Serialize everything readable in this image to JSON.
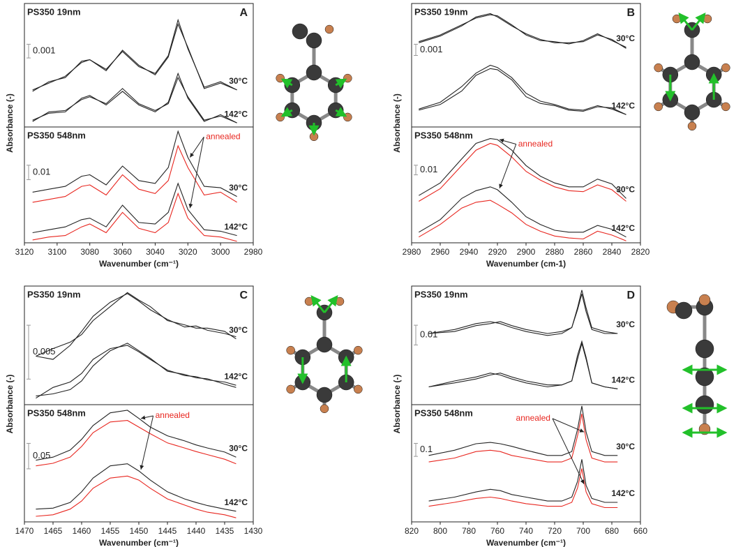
{
  "chart_data": [
    {
      "type": "line",
      "panel": "A",
      "xlabel": "Wavenumber (cm⁻¹)",
      "ylabel": "Absorbance (-)",
      "xlim": [
        3120,
        2980
      ],
      "xticks": [
        3120,
        3100,
        3080,
        3060,
        3040,
        3020,
        3000,
        2980
      ],
      "x": [
        3115,
        3105,
        3095,
        3085,
        3080,
        3070,
        3060,
        3050,
        3040,
        3032,
        3026,
        3020,
        3010,
        3000,
        2990
      ],
      "subplots": [
        {
          "title": "PS350 19nm",
          "scale_bar": 0.001,
          "ylim": [
            0,
            0.009
          ],
          "labels": [
            "30°C",
            "142°C"
          ],
          "series": [
            {
              "color": "#222222",
              "values": [
                0.0026,
                0.0033,
                0.0036,
                0.0048,
                0.0049,
                0.0042,
                0.0055,
                0.0044,
                0.0039,
                0.0052,
                0.0078,
                0.0057,
                0.0029,
                0.0033,
                0.0027
              ]
            },
            {
              "color": "#222222",
              "values": [
                0.0027,
                0.0032,
                0.0037,
                0.0047,
                0.0049,
                0.0041,
                0.0056,
                0.0045,
                0.0038,
                0.0051,
                0.0075,
                0.0058,
                0.0028,
                0.0032,
                0.0027
              ]
            },
            {
              "color": "#222222",
              "values": [
                0.0005,
                0.001,
                0.0011,
                0.0021,
                0.0023,
                0.0016,
                0.0026,
                0.0016,
                0.0011,
                0.0018,
                0.0039,
                0.0021,
                0.0004,
                0.0009,
                0.0003
              ]
            },
            {
              "color": "#222222",
              "values": [
                0.0004,
                0.0011,
                0.0012,
                0.002,
                0.0022,
                0.0017,
                0.0028,
                0.0017,
                0.0012,
                0.0017,
                0.0036,
                0.0022,
                0.0005,
                0.0008,
                0.0003
              ]
            }
          ]
        },
        {
          "title": "PS350 548nm",
          "scale_bar": 0.01,
          "ylim": [
            0,
            0.08
          ],
          "labels": [
            "30°C",
            "142°C"
          ],
          "annotation": "annealed",
          "series": [
            {
              "color": "#222222",
              "values": [
                0.035,
                0.037,
                0.039,
                0.046,
                0.047,
                0.04,
                0.053,
                0.043,
                0.041,
                0.052,
                0.077,
                0.059,
                0.039,
                0.038,
                0.032
              ]
            },
            {
              "color": "#e8261f",
              "values": [
                0.028,
                0.03,
                0.032,
                0.039,
                0.04,
                0.033,
                0.047,
                0.037,
                0.034,
                0.043,
                0.067,
                0.052,
                0.033,
                0.035,
                0.028
              ]
            },
            {
              "color": "#222222",
              "values": [
                0.007,
                0.009,
                0.011,
                0.016,
                0.017,
                0.011,
                0.026,
                0.014,
                0.013,
                0.021,
                0.041,
                0.023,
                0.009,
                0.008,
                0.005
              ]
            },
            {
              "color": "#e8261f",
              "values": [
                0.002,
                0.004,
                0.005,
                0.011,
                0.013,
                0.007,
                0.021,
                0.01,
                0.007,
                0.014,
                0.034,
                0.017,
                0.005,
                0.004,
                0.001
              ]
            }
          ]
        }
      ]
    },
    {
      "type": "line",
      "panel": "B",
      "xlabel": "Wavenumber (cm-1)",
      "ylabel": "Absorbance (-)",
      "xlim": [
        2980,
        2820
      ],
      "xticks": [
        2980,
        2960,
        2940,
        2920,
        2900,
        2880,
        2860,
        2840,
        2820
      ],
      "x": [
        2975,
        2960,
        2945,
        2935,
        2925,
        2920,
        2910,
        2900,
        2890,
        2880,
        2870,
        2860,
        2850,
        2840,
        2830
      ],
      "subplots": [
        {
          "title": "PS350 19nm",
          "scale_bar": 0.001,
          "ylim": [
            0,
            0.011
          ],
          "labels": [
            "30°C",
            "142°C"
          ],
          "series": [
            {
              "color": "#222222",
              "values": [
                0.0076,
                0.0082,
                0.0091,
                0.0097,
                0.01,
                0.0099,
                0.0091,
                0.0082,
                0.0077,
                0.0076,
                0.0074,
                0.0077,
                0.0083,
                0.0077,
                0.0071
              ]
            },
            {
              "color": "#222222",
              "values": [
                0.0075,
                0.0081,
                0.009,
                0.0098,
                0.0101,
                0.0098,
                0.009,
                0.0083,
                0.0078,
                0.0075,
                0.0075,
                0.0076,
                0.0082,
                0.0078,
                0.007
              ]
            },
            {
              "color": "#222222",
              "values": [
                0.0015,
                0.002,
                0.0032,
                0.0046,
                0.0052,
                0.0051,
                0.0042,
                0.0027,
                0.0021,
                0.0019,
                0.0015,
                0.0014,
                0.0018,
                0.0017,
                0.0011
              ]
            },
            {
              "color": "#222222",
              "values": [
                0.0016,
                0.0022,
                0.0036,
                0.0048,
                0.0055,
                0.0053,
                0.0044,
                0.003,
                0.0023,
                0.002,
                0.0016,
                0.0015,
                0.0019,
                0.0016,
                0.0011
              ]
            }
          ]
        },
        {
          "title": "PS350 548nm",
          "scale_bar": 0.01,
          "ylim": [
            0,
            0.12
          ],
          "labels": [
            "30°C",
            "142°C"
          ],
          "annotation": "annealed",
          "series": [
            {
              "color": "#222222",
              "values": [
                0.049,
                0.062,
                0.087,
                0.103,
                0.108,
                0.107,
                0.096,
                0.08,
                0.069,
                0.062,
                0.058,
                0.058,
                0.066,
                0.061,
                0.046
              ]
            },
            {
              "color": "#e8261f",
              "values": [
                0.043,
                0.056,
                0.08,
                0.096,
                0.103,
                0.101,
                0.089,
                0.074,
                0.065,
                0.058,
                0.054,
                0.053,
                0.06,
                0.055,
                0.043
              ]
            },
            {
              "color": "#222222",
              "values": [
                0.011,
                0.024,
                0.046,
                0.054,
                0.058,
                0.055,
                0.042,
                0.027,
                0.019,
                0.013,
                0.011,
                0.011,
                0.018,
                0.014,
                0.006
              ]
            },
            {
              "color": "#e8261f",
              "values": [
                0.006,
                0.019,
                0.036,
                0.042,
                0.044,
                0.04,
                0.031,
                0.019,
                0.012,
                0.007,
                0.005,
                0.004,
                0.012,
                0.008,
                0.002
              ]
            }
          ]
        }
      ]
    },
    {
      "type": "line",
      "panel": "C",
      "xlabel": "Wavenumber (cm⁻¹)",
      "ylabel": "Absorbance (-)",
      "xlim": [
        1470,
        1430
      ],
      "xticks": [
        1470,
        1465,
        1460,
        1455,
        1450,
        1445,
        1440,
        1435,
        1430
      ],
      "x": [
        1468,
        1465,
        1462,
        1460,
        1458,
        1455,
        1452,
        1450,
        1448,
        1445,
        1442,
        1440,
        1438,
        1435,
        1433
      ],
      "subplots": [
        {
          "title": "PS350 19nm",
          "scale_bar": 0.005,
          "ylim": [
            0,
            0.011
          ],
          "labels": [
            "30°C",
            "142°C"
          ],
          "series": [
            {
              "color": "#222222",
              "values": [
                0.0045,
                0.0052,
                0.0058,
                0.0065,
                0.0078,
                0.0091,
                0.0104,
                0.0097,
                0.0091,
                0.0078,
                0.0074,
                0.0071,
                0.0071,
                0.0068,
                0.0061
              ]
            },
            {
              "color": "#222222",
              "values": [
                0.0045,
                0.0042,
                0.0055,
                0.0068,
                0.0082,
                0.0095,
                0.0103,
                0.0096,
                0.0088,
                0.0079,
                0.0072,
                0.0073,
                0.0069,
                0.0066,
                0.0063
              ]
            },
            {
              "color": "#222222",
              "values": [
                0.0006,
                0.0016,
                0.0021,
                0.0029,
                0.0042,
                0.0052,
                0.0055,
                0.0049,
                0.0042,
                0.0032,
                0.0027,
                0.0026,
                0.0023,
                0.0021,
                0.0018
              ]
            },
            {
              "color": "#222222",
              "values": [
                0.0008,
                0.001,
                0.0014,
                0.0022,
                0.0036,
                0.005,
                0.0057,
                0.005,
                0.0043,
                0.0031,
                0.0028,
                0.0025,
                0.0024,
                0.0019,
                0.0016
              ]
            }
          ]
        },
        {
          "title": "PS350 548nm",
          "scale_bar": 0.05,
          "ylim": [
            0,
            0.23
          ],
          "labels": [
            "30°C",
            "142°C"
          ],
          "annotation": "annealed",
          "series": [
            {
              "color": "#222222",
              "values": [
                0.121,
                0.127,
                0.141,
                0.162,
                0.189,
                0.214,
                0.219,
                0.203,
                0.186,
                0.169,
                0.159,
                0.151,
                0.145,
                0.137,
                0.127
              ]
            },
            {
              "color": "#e8261f",
              "values": [
                0.11,
                0.115,
                0.127,
                0.148,
                0.175,
                0.196,
                0.199,
                0.186,
                0.173,
                0.155,
                0.145,
                0.138,
                0.132,
                0.123,
                0.114
              ]
            },
            {
              "color": "#222222",
              "values": [
                0.025,
                0.027,
                0.038,
                0.059,
                0.086,
                0.11,
                0.114,
                0.1,
                0.082,
                0.059,
                0.045,
                0.038,
                0.032,
                0.025,
                0.021
              ]
            },
            {
              "color": "#e8261f",
              "values": [
                0.011,
                0.014,
                0.025,
                0.041,
                0.066,
                0.086,
                0.09,
                0.082,
                0.066,
                0.045,
                0.033,
                0.025,
                0.019,
                0.014,
                0.008
              ]
            }
          ]
        }
      ]
    },
    {
      "type": "line",
      "panel": "D",
      "xlabel": "Wavenumber (cm⁻¹)",
      "ylabel": "Absorbance (-)",
      "xlim": [
        820,
        660
      ],
      "xticks": [
        820,
        800,
        780,
        760,
        740,
        720,
        700,
        680,
        660
      ],
      "x": [
        808,
        790,
        775,
        765,
        758,
        750,
        740,
        725,
        715,
        708,
        704,
        701,
        698,
        694,
        685,
        676
      ],
      "subplots": [
        {
          "title": "PS350 19nm",
          "scale_bar": 0.01,
          "ylim": [
            0,
            0.06
          ],
          "labels": [
            "30°C",
            "142°C"
          ],
          "series": [
            {
              "color": "#222222",
              "values": [
                0.036,
                0.037,
                0.04,
                0.041,
                0.042,
                0.04,
                0.038,
                0.036,
                0.037,
                0.039,
                0.049,
                0.058,
                0.049,
                0.039,
                0.037,
                0.036
              ]
            },
            {
              "color": "#222222",
              "values": [
                0.036,
                0.038,
                0.041,
                0.042,
                0.041,
                0.039,
                0.037,
                0.035,
                0.036,
                0.039,
                0.048,
                0.056,
                0.047,
                0.038,
                0.036,
                0.036
              ]
            },
            {
              "color": "#222222",
              "values": [
                0.009,
                0.011,
                0.013,
                0.015,
                0.016,
                0.014,
                0.012,
                0.01,
                0.01,
                0.012,
                0.025,
                0.032,
                0.024,
                0.011,
                0.009,
                0.008
              ]
            },
            {
              "color": "#222222",
              "values": [
                0.009,
                0.012,
                0.014,
                0.016,
                0.015,
                0.013,
                0.011,
                0.009,
                0.01,
                0.012,
                0.023,
                0.031,
                0.023,
                0.011,
                0.009,
                0.008
              ]
            }
          ]
        },
        {
          "title": "PS350 548nm",
          "scale_bar": 0.1,
          "ylim": [
            0,
            0.9
          ],
          "labels": [
            "30°C",
            "142°C"
          ],
          "annotation": "annealed",
          "series": [
            {
              "color": "#222222",
              "values": [
                0.51,
                0.55,
                0.6,
                0.61,
                0.6,
                0.58,
                0.55,
                0.51,
                0.51,
                0.54,
                0.71,
                0.89,
                0.69,
                0.54,
                0.51,
                0.51
              ]
            },
            {
              "color": "#e8261f",
              "values": [
                0.46,
                0.49,
                0.54,
                0.55,
                0.54,
                0.51,
                0.49,
                0.46,
                0.46,
                0.49,
                0.66,
                0.83,
                0.63,
                0.49,
                0.46,
                0.46
              ]
            },
            {
              "color": "#222222",
              "values": [
                0.16,
                0.19,
                0.23,
                0.25,
                0.24,
                0.21,
                0.19,
                0.16,
                0.16,
                0.19,
                0.31,
                0.48,
                0.28,
                0.18,
                0.15,
                0.15
              ]
            },
            {
              "color": "#e8261f",
              "values": [
                0.12,
                0.15,
                0.18,
                0.19,
                0.18,
                0.16,
                0.14,
                0.12,
                0.12,
                0.15,
                0.26,
                0.41,
                0.23,
                0.14,
                0.11,
                0.11
              ]
            }
          ]
        }
      ]
    }
  ]
}
